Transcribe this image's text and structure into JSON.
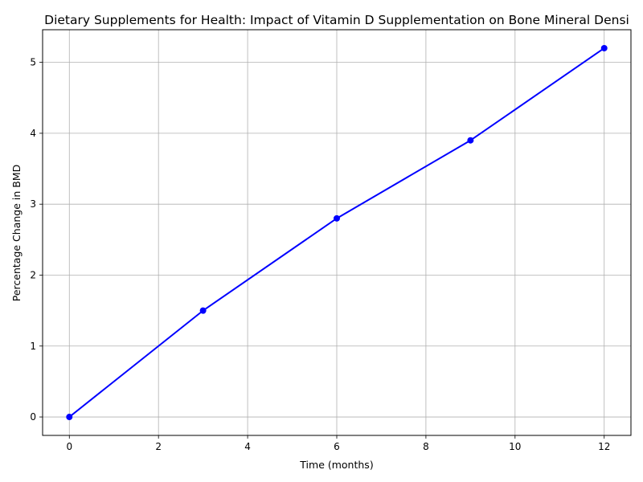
{
  "chart_data": {
    "type": "line",
    "title": "Dietary Supplements for Health: Impact of Vitamin D Supplementation on Bone Mineral Densi",
    "xlabel": "Time (months)",
    "ylabel": "Percentage Change in BMD",
    "x": [
      0,
      3,
      6,
      9,
      12
    ],
    "series": [
      {
        "values": [
          0,
          1.5,
          2.8,
          3.9,
          5.2
        ]
      }
    ],
    "xlim": [
      -0.6,
      12.6
    ],
    "ylim": [
      -0.26,
      5.46
    ],
    "xticks": [
      0,
      2,
      4,
      6,
      8,
      10,
      12
    ],
    "yticks": [
      0,
      1,
      2,
      3,
      4,
      5
    ],
    "grid": true,
    "legend": "none",
    "colors": {
      "line": "#0000ff",
      "grid": "#b0b0b0",
      "axes": "#000000"
    }
  }
}
